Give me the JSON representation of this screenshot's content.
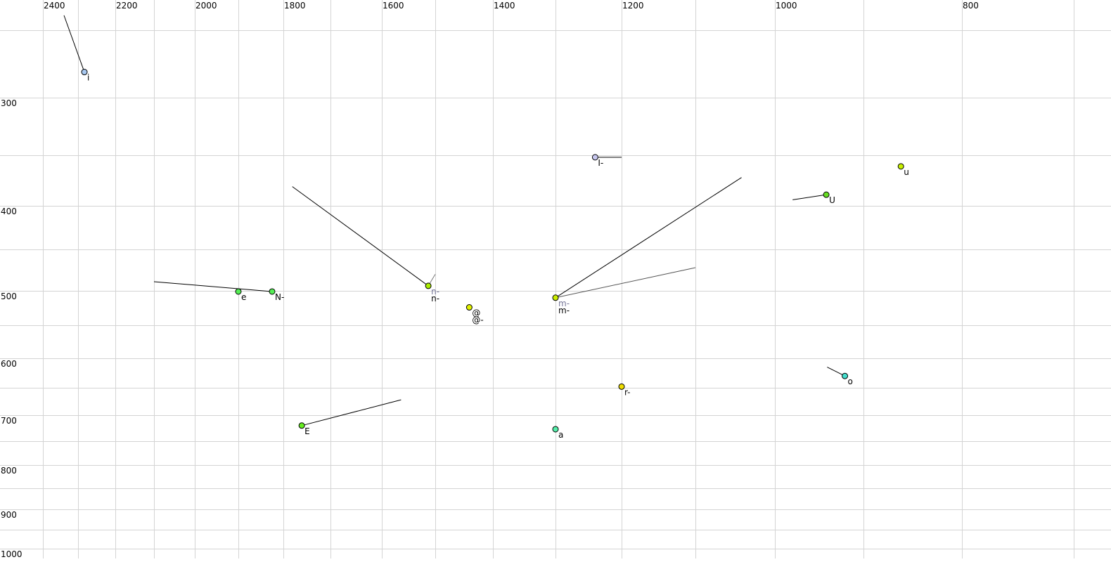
{
  "chart_data": {
    "type": "scatter",
    "title": "",
    "xlabel": "",
    "ylabel": "",
    "x_axis": {
      "reversed": true,
      "scale": "nonlinear (perceptual)",
      "tick_labels": [
        2400,
        2200,
        2000,
        1800,
        1600,
        1400,
        1200,
        1000,
        800
      ],
      "gridlines": [
        2400,
        2300,
        2200,
        2100,
        2000,
        1900,
        1800,
        1700,
        1600,
        1500,
        1400,
        1300,
        1200,
        1100,
        1000,
        900,
        800,
        700
      ],
      "position": "top"
    },
    "y_axis": {
      "reversed": true,
      "scale": "nonlinear (perceptual)",
      "tick_labels": [
        300,
        400,
        500,
        600,
        700,
        800,
        900,
        1000
      ],
      "gridlines": [
        250,
        300,
        350,
        400,
        450,
        500,
        550,
        600,
        650,
        700,
        750,
        800,
        850,
        900,
        950,
        1000
      ],
      "position": "left"
    },
    "grid": true,
    "grid_color": "#d4d4d4",
    "points": [
      {
        "x": 2283,
        "y": 281,
        "color": "#a8c8f0",
        "labels": [
          {
            "text": "i",
            "color": "#000000"
          }
        ],
        "tracks": [
          {
            "x": 2340,
            "y": 239,
            "color": "#000000"
          }
        ]
      },
      {
        "x": 1240,
        "y": 352,
        "color": "#c8c8f0",
        "labels": [
          {
            "text": "I-",
            "color": "#000000"
          }
        ],
        "tracks": [
          {
            "x": 1200,
            "y": 352,
            "color": "#000000"
          }
        ]
      },
      {
        "x": 862,
        "y": 361,
        "color": "#c8f000",
        "labels": [
          {
            "text": "u",
            "color": "#000000"
          }
        ],
        "tracks": []
      },
      {
        "x": 942,
        "y": 389,
        "color": "#66dd22",
        "labels": [
          {
            "text": "U",
            "color": "#000000"
          }
        ],
        "tracks": [
          {
            "x": 980,
            "y": 394,
            "color": "#000000"
          }
        ]
      },
      {
        "x": 1900,
        "y": 501,
        "color": "#55ee55",
        "labels": [
          {
            "text": "e",
            "color": "#000000"
          }
        ],
        "tracks": []
      },
      {
        "x": 1825,
        "y": 501,
        "color": "#55ee55",
        "labels": [
          {
            "text": "N-",
            "color": "#000000"
          }
        ],
        "tracks": [
          {
            "x": 2100,
            "y": 489,
            "color": "#000000"
          }
        ]
      },
      {
        "x": 1513,
        "y": 494,
        "color": "#aaee00",
        "labels": [
          {
            "text": "n-",
            "color": "#777799"
          },
          {
            "text": "n-",
            "color": "#000000"
          }
        ],
        "tracks": [
          {
            "x": 1781,
            "y": 381,
            "color": "#000000"
          },
          {
            "x": 1500,
            "y": 480,
            "color": "#777777"
          }
        ]
      },
      {
        "x": 1441,
        "y": 524,
        "color": "#e0f000",
        "labels": [
          {
            "text": "@",
            "color": "#000000"
          },
          {
            "text": "@-",
            "color": "#000000"
          }
        ],
        "tracks": []
      },
      {
        "x": 1300,
        "y": 510,
        "color": "#ccee00",
        "labels": [
          {
            "text": "m-",
            "color": "#777799"
          },
          {
            "text": "m-",
            "color": "#000000"
          }
        ],
        "tracks": [
          {
            "x": 1042,
            "y": 372,
            "color": "#000000"
          },
          {
            "x": 1100,
            "y": 472,
            "color": "#555555"
          }
        ]
      },
      {
        "x": 1761,
        "y": 720,
        "color": "#66ee22",
        "labels": [
          {
            "text": "E",
            "color": "#000000"
          }
        ],
        "tracks": [
          {
            "x": 1564,
            "y": 672,
            "color": "#000000"
          }
        ]
      },
      {
        "x": 1300,
        "y": 727,
        "color": "#55eeaa",
        "labels": [
          {
            "text": "a",
            "color": "#000000"
          }
        ],
        "tracks": []
      },
      {
        "x": 1200,
        "y": 648,
        "color": "#eedd00",
        "labels": [
          {
            "text": "r-",
            "color": "#000000"
          }
        ],
        "tracks": []
      },
      {
        "x": 921,
        "y": 630,
        "color": "#44ddcc",
        "labels": [
          {
            "text": "o",
            "color": "#000000"
          }
        ],
        "tracks": [
          {
            "x": 941,
            "y": 615,
            "color": "#000000"
          }
        ]
      }
    ]
  }
}
